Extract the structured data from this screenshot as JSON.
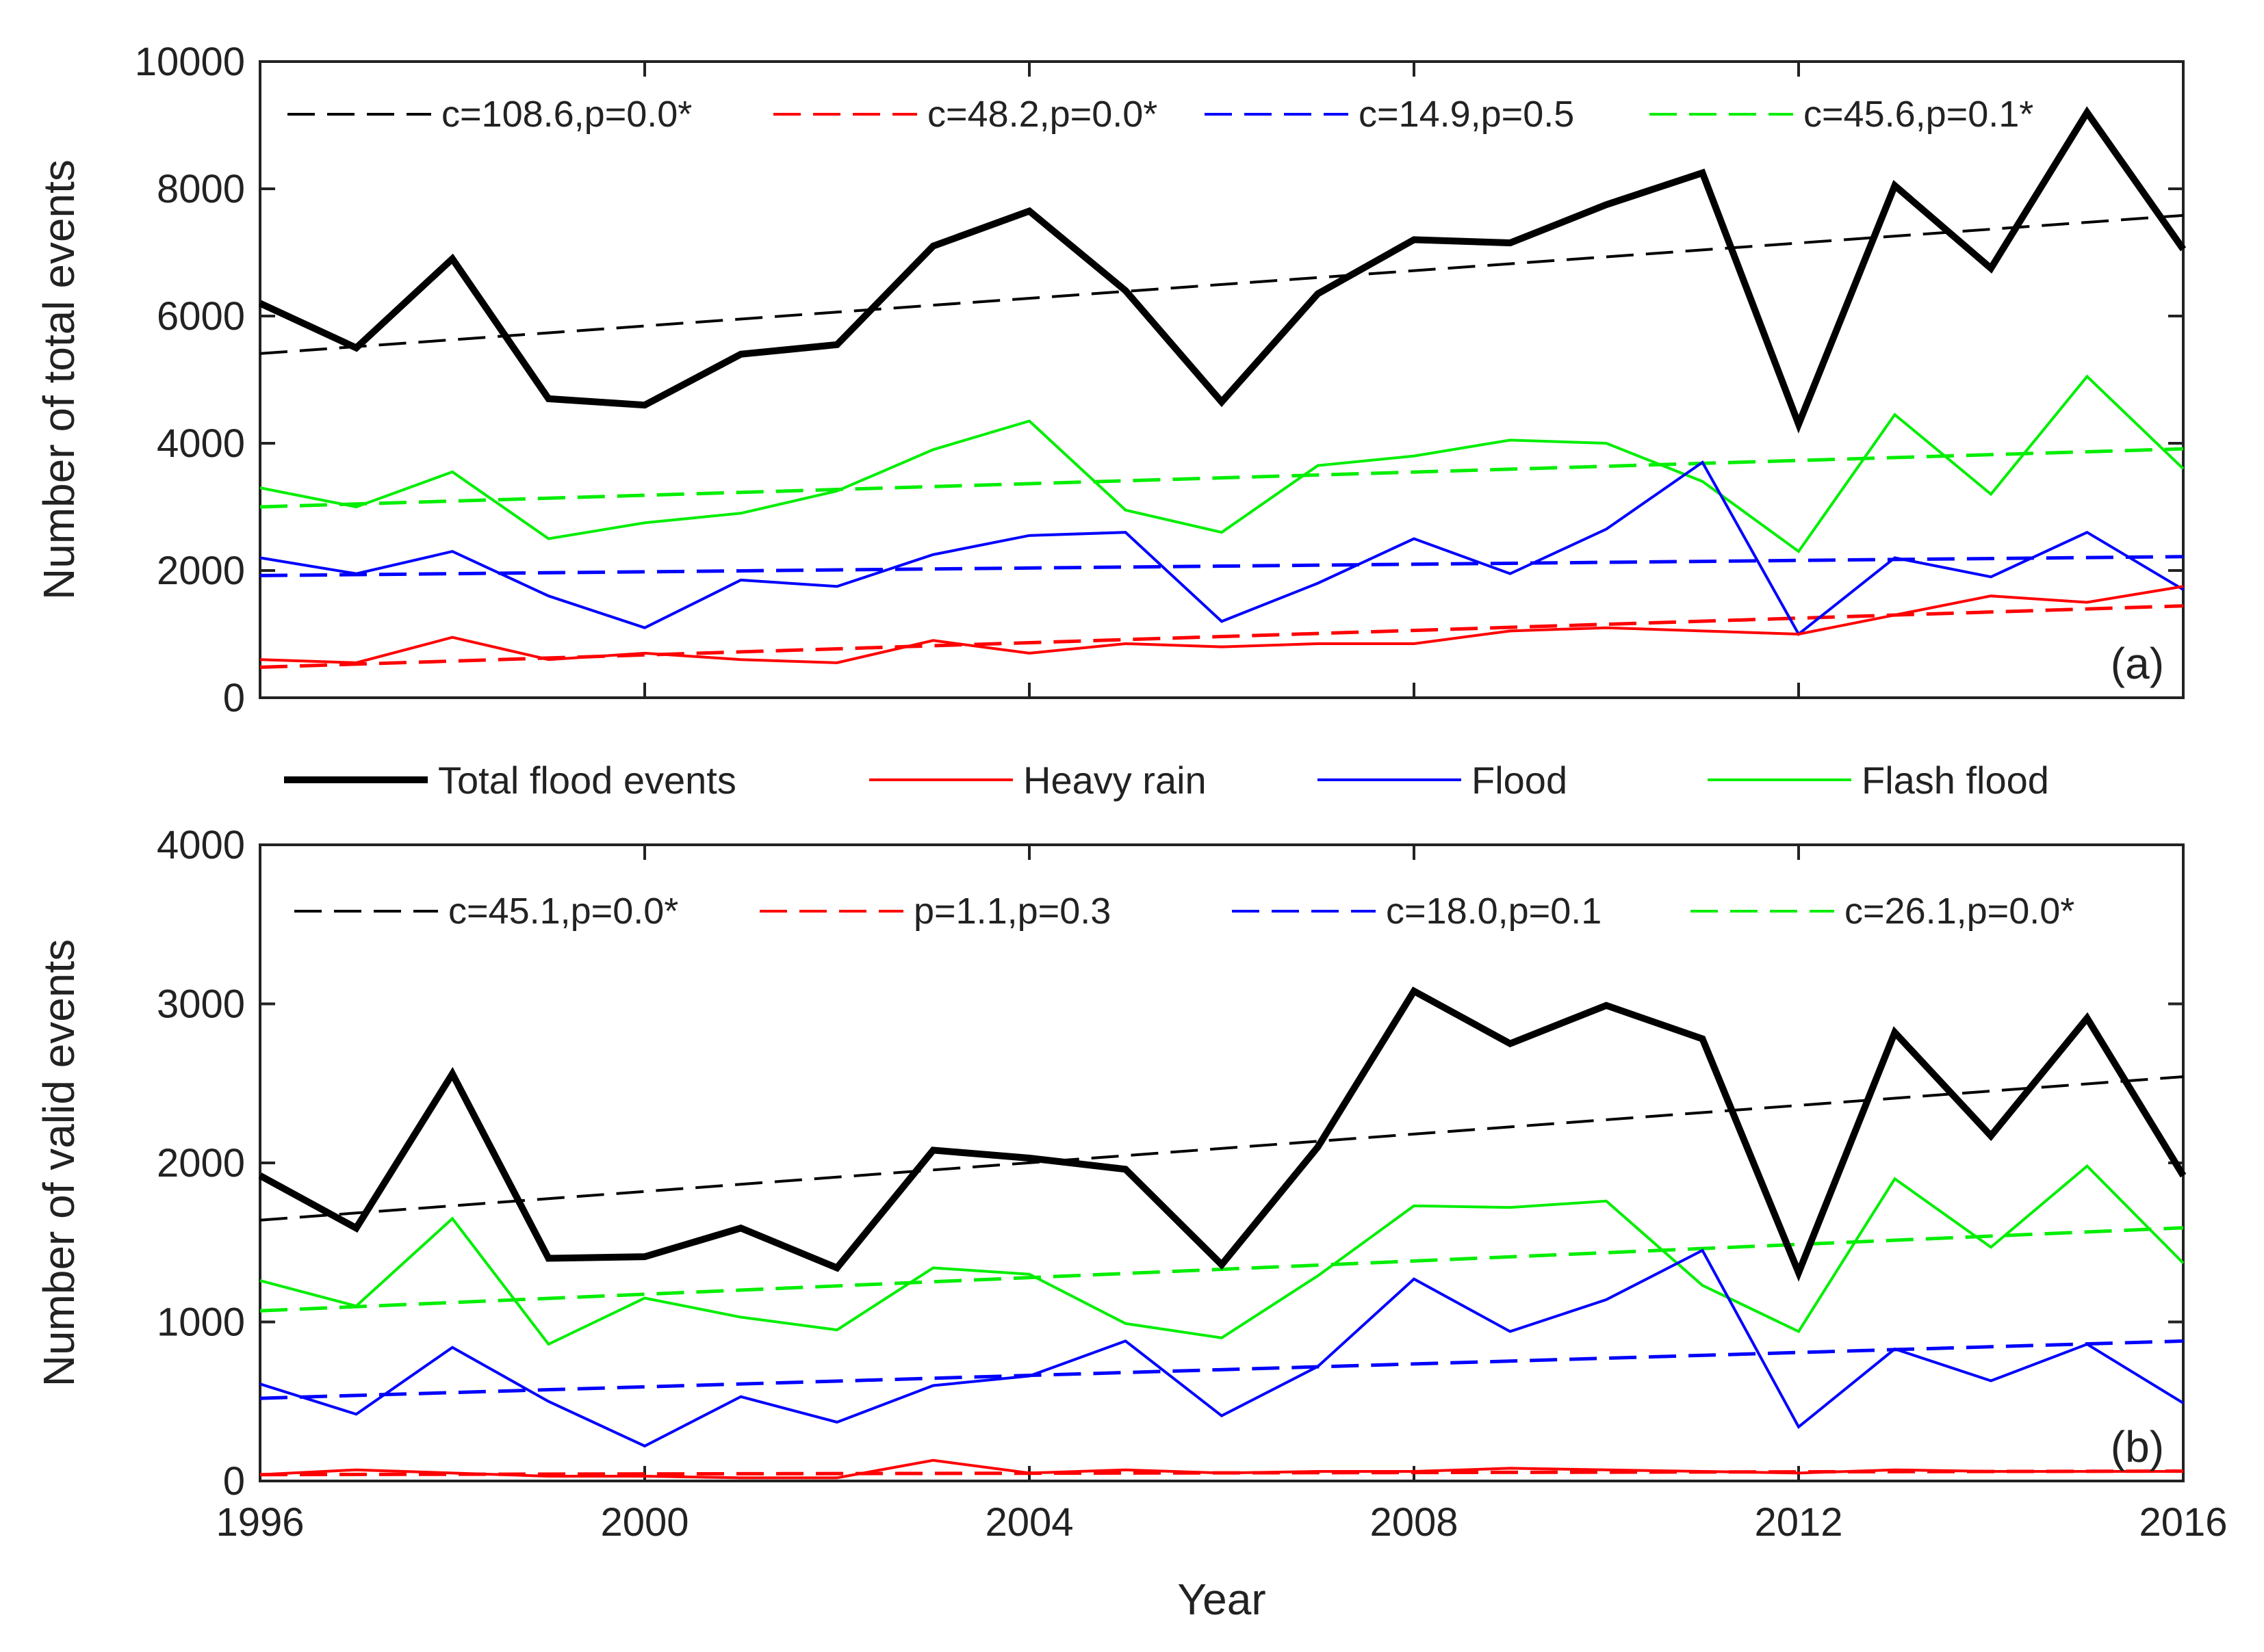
{
  "chart_data": [
    {
      "type": "line",
      "panel_label": "(a)",
      "xlabel": "",
      "ylabel": "Number of total events",
      "xlim": [
        1996,
        2016
      ],
      "ylim": [
        0,
        10000
      ],
      "x_ticks": [
        "1996",
        "2000",
        "2004",
        "2008",
        "2012",
        "2016"
      ],
      "y_ticks": [
        "0",
        "2000",
        "4000",
        "6000",
        "8000",
        "10000"
      ],
      "x": [
        1996,
        1997,
        1998,
        1999,
        2000,
        2001,
        2002,
        2003,
        2004,
        2005,
        2006,
        2007,
        2008,
        2009,
        2010,
        2011,
        2012,
        2013,
        2014,
        2015,
        2016
      ],
      "series": [
        {
          "name": "Total flood events",
          "color": "#000000",
          "values": [
            6200,
            5500,
            6900,
            4700,
            4600,
            5400,
            5550,
            7100,
            7650,
            6400,
            4650,
            6350,
            7200,
            7150,
            7750,
            8250,
            4300,
            8050,
            6750,
            9200,
            7050
          ],
          "trend": [
            5410,
            7582
          ]
        },
        {
          "name": "Heavy rain",
          "color": "#ff0000",
          "values": [
            600,
            550,
            950,
            600,
            700,
            600,
            550,
            900,
            700,
            850,
            800,
            850,
            850,
            1050,
            1100,
            1050,
            1000,
            1300,
            1600,
            1500,
            1750
          ],
          "trend": [
            480,
            1444
          ]
        },
        {
          "name": "Flood",
          "color": "#0000ff",
          "values": [
            2200,
            1950,
            2300,
            1600,
            1100,
            1850,
            1750,
            2250,
            2550,
            2600,
            1200,
            1800,
            2500,
            1950,
            2650,
            3700,
            1000,
            2200,
            1900,
            2600,
            1700
          ],
          "trend": [
            1920,
            2218
          ]
        },
        {
          "name": "Flash flood",
          "color": "#00ee00",
          "values": [
            3300,
            3000,
            3550,
            2500,
            2750,
            2900,
            3250,
            3900,
            4350,
            2950,
            2600,
            3650,
            3800,
            4050,
            4000,
            3400,
            2300,
            4450,
            3200,
            5050,
            3600
          ],
          "trend": [
            3000,
            3912
          ]
        }
      ],
      "annotations": [
        "c=108.6,p=0.0*",
        "c=48.2,p=0.0*",
        "c=14.9,p=0.5",
        "c=45.6,p=0.1*"
      ]
    },
    {
      "type": "line",
      "panel_label": "(b)",
      "xlabel": "Year",
      "ylabel": "Number of valid events",
      "xlim": [
        1996,
        2016
      ],
      "ylim": [
        0,
        4000
      ],
      "x_ticks": [
        "1996",
        "2000",
        "2004",
        "2008",
        "2012",
        "2016"
      ],
      "y_ticks": [
        "0",
        "1000",
        "2000",
        "3000",
        "4000"
      ],
      "x": [
        1996,
        1997,
        1998,
        1999,
        2000,
        2001,
        2002,
        2003,
        2004,
        2005,
        2006,
        2007,
        2008,
        2009,
        2010,
        2011,
        2012,
        2013,
        2014,
        2015,
        2016
      ],
      "series": [
        {
          "name": "Total flood events",
          "color": "#000000",
          "values": [
            1920,
            1590,
            2560,
            1400,
            1410,
            1590,
            1340,
            2080,
            2030,
            1960,
            1360,
            2100,
            3080,
            2750,
            2990,
            2780,
            1310,
            2820,
            2170,
            2910,
            1920
          ],
          "trend": [
            1640,
            2542
          ]
        },
        {
          "name": "Heavy rain",
          "color": "#ff0000",
          "values": [
            40,
            70,
            50,
            30,
            30,
            20,
            20,
            130,
            50,
            70,
            50,
            60,
            60,
            80,
            70,
            60,
            50,
            70,
            60,
            60,
            60
          ],
          "trend": [
            40,
            62
          ]
        },
        {
          "name": "Flood",
          "color": "#0000ff",
          "values": [
            610,
            420,
            840,
            500,
            220,
            530,
            370,
            600,
            660,
            880,
            410,
            720,
            1270,
            940,
            1140,
            1450,
            340,
            830,
            630,
            860,
            490
          ],
          "trend": [
            520,
            880
          ]
        },
        {
          "name": "Flash flood",
          "color": "#00ee00",
          "values": [
            1260,
            1100,
            1650,
            860,
            1150,
            1030,
            950,
            1340,
            1300,
            990,
            900,
            1290,
            1730,
            1720,
            1760,
            1230,
            940,
            1900,
            1470,
            1980,
            1370
          ],
          "trend": [
            1070,
            1592
          ]
        }
      ],
      "annotations": [
        "c=45.1,p=0.0*",
        "p=1.1,p=0.3",
        "c=18.0,p=0.1",
        "c=26.1,p=0.0*"
      ]
    }
  ],
  "legend": [
    {
      "label": "Total flood events",
      "color": "#000000"
    },
    {
      "label": "Heavy rain",
      "color": "#ff0000"
    },
    {
      "label": "Flood",
      "color": "#0000ff"
    },
    {
      "label": "Flash flood",
      "color": "#00ee00"
    }
  ]
}
